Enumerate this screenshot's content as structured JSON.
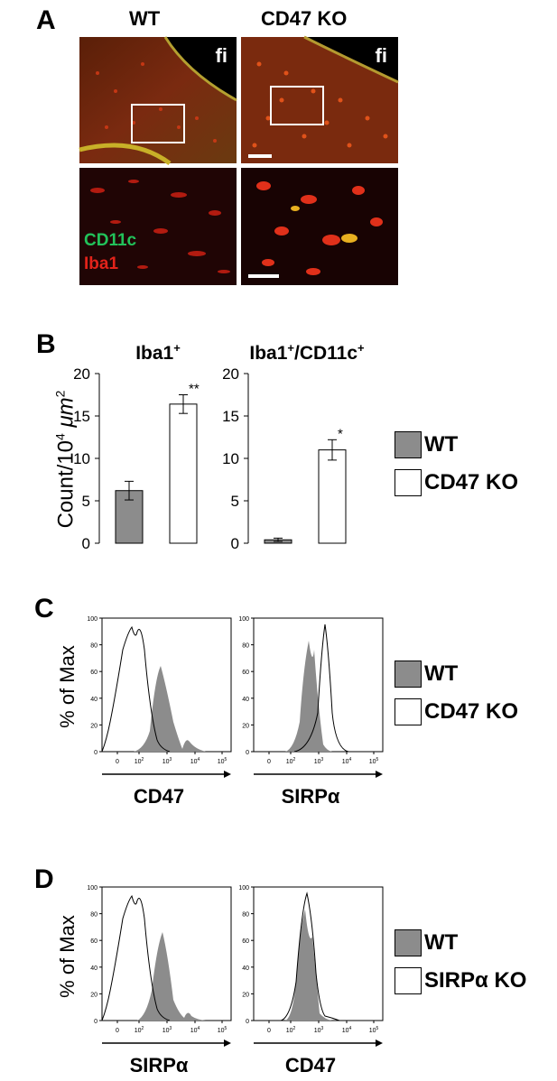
{
  "panelA": {
    "letter": "A",
    "col_wt": "WT",
    "col_ko": "CD47 KO",
    "fi_left": "fi",
    "fi_right": "fi",
    "marker1": "CD11c",
    "marker2": "Iba1",
    "marker1_color": "#22c25a",
    "marker2_color": "#e2231a"
  },
  "panelB": {
    "letter": "B",
    "ylabel": "Count/10",
    "ylabel_sup": "4",
    "ylabel_unit": " μm",
    "ylabel_unit_sup": "2",
    "legend_wt": "WT",
    "legend_ko": "CD47 KO"
  },
  "panelC": {
    "letter": "C",
    "ylabel": "% of Max",
    "x_left": "CD47",
    "x_right": "SIRPα",
    "legend_wt": "WT",
    "legend_ko": "CD47 KO"
  },
  "panelD": {
    "letter": "D",
    "ylabel": "% of Max",
    "x_left": "SIRPα",
    "x_right": "CD47",
    "legend_wt": "WT",
    "legend_ko": "SIRPα KO"
  },
  "hist_axis": {
    "yticks": [
      "0",
      "20",
      "40",
      "60",
      "80",
      "100"
    ],
    "xticks": [
      "0",
      "10",
      "10",
      "10",
      "10"
    ],
    "xtick_sups": [
      "",
      "2",
      "3",
      "4",
      "5"
    ]
  },
  "colors": {
    "wt_fill": "#8c8c8c",
    "ko_fill": "#ffffff"
  },
  "chart_data": [
    {
      "type": "bar",
      "title": "Iba1+",
      "title_main": "Iba1",
      "title_sup": "+",
      "categories": [
        "WT",
        "CD47 KO"
      ],
      "values": [
        6.2,
        16.4
      ],
      "errors": [
        1.1,
        1.1
      ],
      "significance": [
        "",
        "**"
      ],
      "ylim": [
        0,
        20
      ],
      "yticks": [
        "0",
        "5",
        "10",
        "15",
        "20"
      ]
    },
    {
      "type": "bar",
      "title": "Iba1+/CD11c+",
      "title_main": "Iba1",
      "title_sup": "+",
      "title_mid": "/CD11c",
      "title_sup2": "+",
      "categories": [
        "WT",
        "CD47 KO"
      ],
      "values": [
        0.4,
        11.0
      ],
      "errors": [
        0.2,
        1.2
      ],
      "significance": [
        "",
        "*"
      ],
      "ylim": [
        0,
        20
      ],
      "yticks": [
        "0",
        "5",
        "10",
        "15",
        "20"
      ]
    }
  ]
}
